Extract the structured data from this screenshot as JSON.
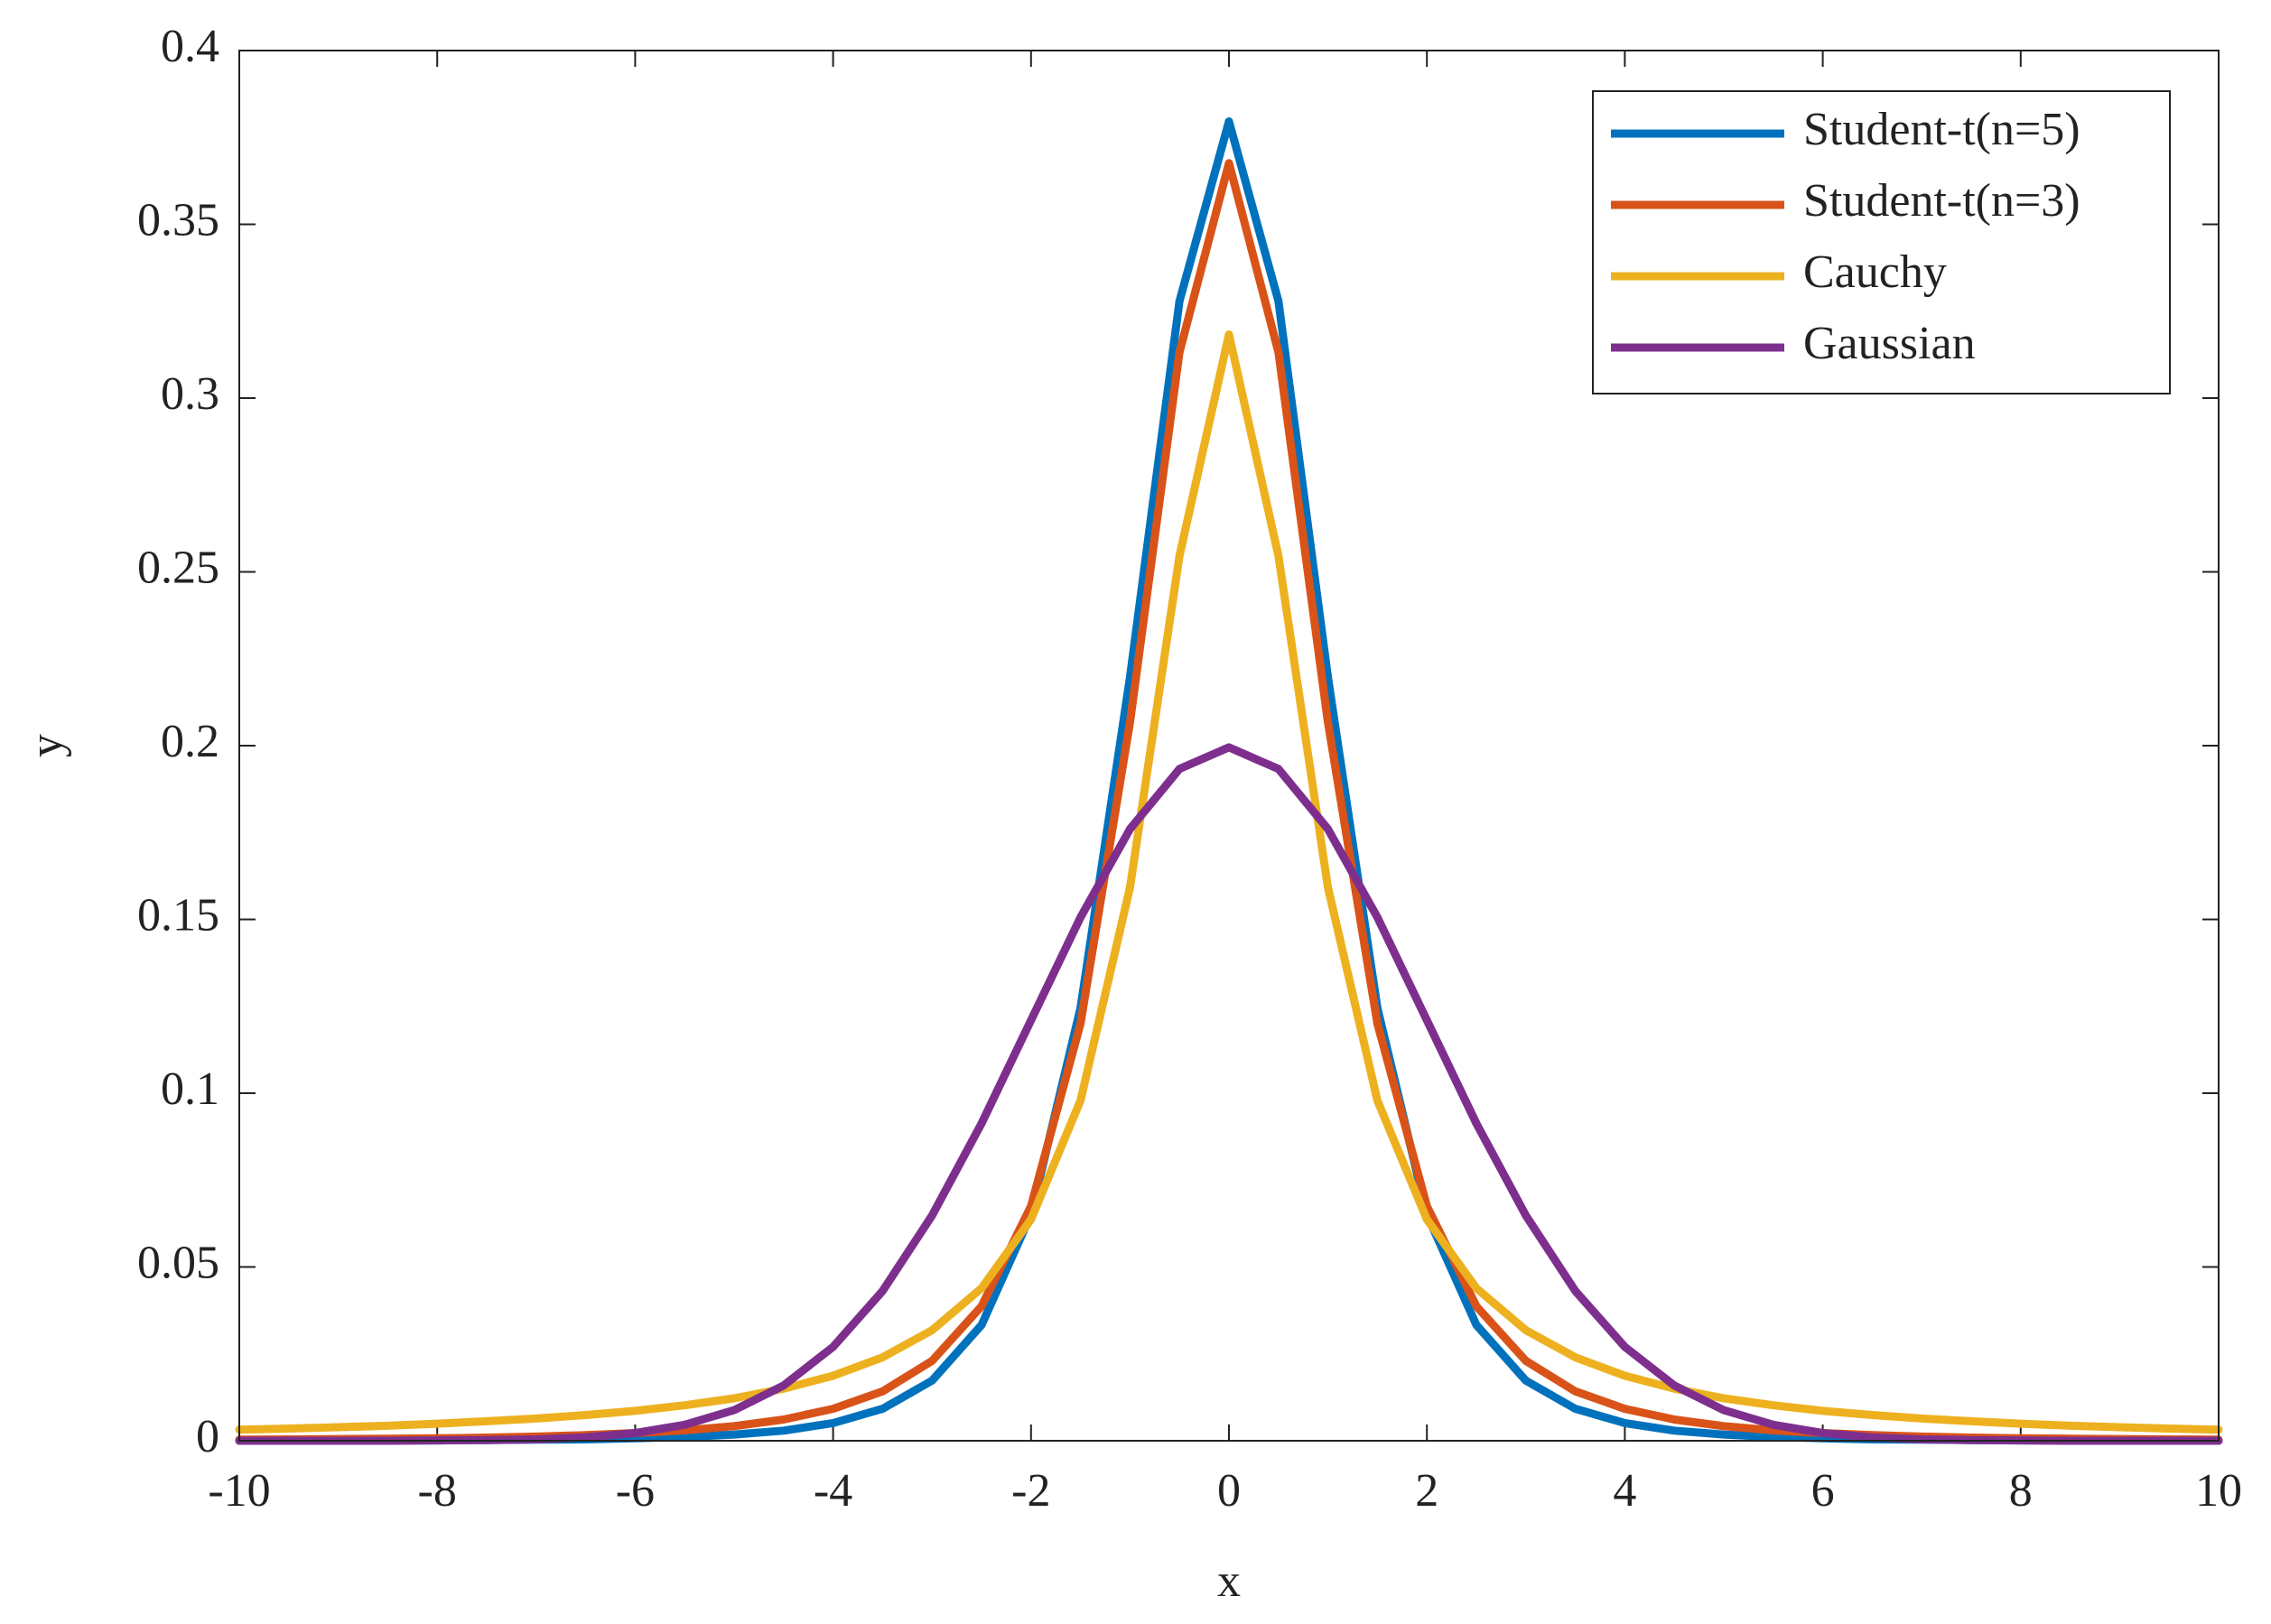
{
  "chart_data": {
    "type": "line",
    "xlabel": "x",
    "ylabel": "y",
    "x": [
      -10,
      -9.5,
      -9,
      -8.5,
      -8,
      -7.5,
      -7,
      -6.5,
      -6,
      -5.5,
      -5,
      -4.5,
      -4,
      -3.5,
      -3,
      -2.5,
      -2,
      -1.5,
      -1,
      -0.5,
      0,
      0.5,
      1,
      1.5,
      2,
      2.5,
      3,
      3.5,
      4,
      4.5,
      5,
      5.5,
      6,
      6.5,
      7,
      7.5,
      8,
      8.5,
      9,
      9.5,
      10
    ],
    "series": [
      {
        "name": "Student-t(n=5)",
        "color": "#0072bd",
        "values": [
          0,
          0.0001,
          0.0001,
          0.0001,
          0.0001,
          0.0002,
          0.0003,
          0.0004,
          0.0007,
          0.0011,
          0.0018,
          0.0029,
          0.0051,
          0.0092,
          0.0173,
          0.0333,
          0.0651,
          0.1245,
          0.2197,
          0.3279,
          0.3796,
          0.3279,
          0.2197,
          0.1245,
          0.0651,
          0.0333,
          0.0173,
          0.0092,
          0.0051,
          0.0029,
          0.0018,
          0.0011,
          0.0007,
          0.0004,
          0.0003,
          0.0002,
          0.0001,
          0.0001,
          0.0001,
          0.0001,
          0
        ]
      },
      {
        "name": "Student-t(n=3)",
        "color": "#d95319",
        "values": [
          0.0003,
          0.0004,
          0.0005,
          0.0006,
          0.0007,
          0.0009,
          0.0012,
          0.0016,
          0.0022,
          0.003,
          0.0042,
          0.0061,
          0.0092,
          0.0142,
          0.023,
          0.0387,
          0.0675,
          0.12,
          0.2067,
          0.3132,
          0.3676,
          0.3132,
          0.2067,
          0.12,
          0.0675,
          0.0387,
          0.023,
          0.0142,
          0.0092,
          0.0061,
          0.0042,
          0.003,
          0.0022,
          0.0016,
          0.0012,
          0.0009,
          0.0007,
          0.0006,
          0.0005,
          0.0004,
          0.0003
        ]
      },
      {
        "name": "Cauchy",
        "color": "#edb120",
        "values": [
          0.0032,
          0.0035,
          0.0039,
          0.0043,
          0.0049,
          0.0056,
          0.0064,
          0.0074,
          0.0086,
          0.0102,
          0.0122,
          0.015,
          0.0187,
          0.024,
          0.0318,
          0.0439,
          0.0637,
          0.0979,
          0.1592,
          0.2546,
          0.3183,
          0.2546,
          0.1592,
          0.0979,
          0.0637,
          0.0439,
          0.0318,
          0.024,
          0.0187,
          0.015,
          0.0122,
          0.0102,
          0.0086,
          0.0074,
          0.0064,
          0.0056,
          0.0049,
          0.0043,
          0.0039,
          0.0035,
          0.0032
        ]
      },
      {
        "name": "Gaussian",
        "color": "#7e2f8e",
        "values": [
          0,
          0,
          0,
          0,
          0.0001,
          0.0002,
          0.0004,
          0.001,
          0.0022,
          0.0046,
          0.0088,
          0.0159,
          0.027,
          0.0431,
          0.0648,
          0.0913,
          0.121,
          0.1506,
          0.176,
          0.1933,
          0.1995,
          0.1933,
          0.176,
          0.1506,
          0.121,
          0.0913,
          0.0648,
          0.0431,
          0.027,
          0.0159,
          0.0088,
          0.0046,
          0.0022,
          0.001,
          0.0004,
          0.0002,
          0.0001,
          0,
          0,
          0,
          0
        ]
      }
    ],
    "xlim": [
      -10,
      10
    ],
    "xticks": [
      -10,
      -8,
      -6,
      -4,
      -2,
      0,
      2,
      4,
      6,
      8,
      10
    ],
    "ylim": [
      0,
      0.4
    ],
    "yticks": [
      0,
      0.05,
      0.1,
      0.15,
      0.2,
      0.25,
      0.3,
      0.35,
      0.4
    ],
    "grid": false,
    "legend": "northeast"
  }
}
